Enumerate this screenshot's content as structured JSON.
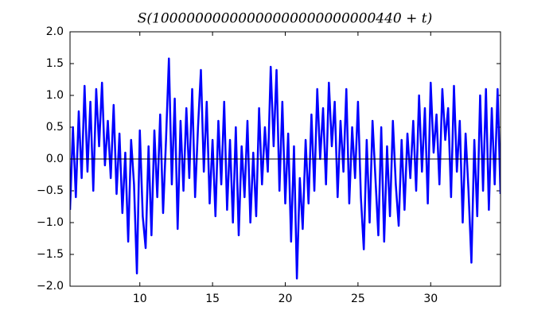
{
  "chart_data": {
    "type": "line",
    "title": "S(10000000000000000000000000440 + t)",
    "color": "#0000ff",
    "hline": 0,
    "xlim": [
      5.2,
      34.8
    ],
    "xticks": [
      10,
      15,
      20,
      25,
      30
    ],
    "ylim": [
      -2,
      2
    ],
    "yticks": [
      {
        "value": -2,
        "label": "−2.0"
      },
      {
        "value": -1.5,
        "label": "−1.5"
      },
      {
        "value": -1,
        "label": "−1.0"
      },
      {
        "value": -0.5,
        "label": "−0.5"
      },
      {
        "value": 0,
        "label": "0.0"
      },
      {
        "value": 0.5,
        "label": "0.5"
      },
      {
        "value": 1,
        "label": "1.0"
      },
      {
        "value": 1.5,
        "label": "1.5"
      },
      {
        "value": 2,
        "label": "2.0"
      }
    ],
    "x": [
      5.2,
      5.4,
      5.6,
      5.8,
      6.0,
      6.2,
      6.4,
      6.6,
      6.8,
      7.0,
      7.2,
      7.4,
      7.6,
      7.8,
      8.0,
      8.2,
      8.4,
      8.6,
      8.8,
      9.0,
      9.2,
      9.4,
      9.6,
      9.8,
      10.0,
      10.2,
      10.4,
      10.6,
      10.8,
      11.0,
      11.2,
      11.4,
      11.6,
      11.8,
      12.0,
      12.2,
      12.4,
      12.6,
      12.8,
      13.0,
      13.2,
      13.4,
      13.6,
      13.8,
      14.0,
      14.2,
      14.4,
      14.6,
      14.8,
      15.0,
      15.2,
      15.4,
      15.6,
      15.8,
      16.0,
      16.2,
      16.4,
      16.6,
      16.8,
      17.0,
      17.2,
      17.4,
      17.6,
      17.8,
      18.0,
      18.2,
      18.4,
      18.6,
      18.8,
      19.0,
      19.2,
      19.4,
      19.6,
      19.8,
      20.0,
      20.2,
      20.4,
      20.6,
      20.8,
      21.0,
      21.2,
      21.4,
      21.6,
      21.8,
      22.0,
      22.2,
      22.4,
      22.6,
      22.8,
      23.0,
      23.2,
      23.4,
      23.6,
      23.8,
      24.0,
      24.2,
      24.4,
      24.6,
      24.8,
      25.0,
      25.2,
      25.4,
      25.6,
      25.8,
      26.0,
      26.2,
      26.4,
      26.6,
      26.8,
      27.0,
      27.2,
      27.4,
      27.6,
      27.8,
      28.0,
      28.2,
      28.4,
      28.6,
      28.8,
      29.0,
      29.2,
      29.4,
      29.6,
      29.8,
      30.0,
      30.2,
      30.4,
      30.6,
      30.8,
      31.0,
      31.2,
      31.4,
      31.6,
      31.8,
      32.0,
      32.2,
      32.4,
      32.6,
      32.8,
      33.0,
      33.2,
      33.4,
      33.6,
      33.8,
      34.0,
      34.2,
      34.4,
      34.6,
      34.8
    ],
    "values": [
      -0.8,
      0.5,
      -0.6,
      0.75,
      -0.3,
      1.15,
      -0.2,
      0.9,
      -0.5,
      1.1,
      0.2,
      1.2,
      -0.1,
      0.6,
      -0.3,
      0.85,
      -0.55,
      0.4,
      -0.85,
      0.1,
      -1.3,
      0.3,
      -0.4,
      -1.8,
      0.45,
      -0.9,
      -1.4,
      0.2,
      -1.2,
      0.45,
      -0.6,
      0.7,
      -0.85,
      0.3,
      1.58,
      -0.4,
      0.95,
      -1.1,
      0.6,
      -0.5,
      0.8,
      -0.3,
      1.1,
      -0.6,
      0.5,
      1.4,
      -0.2,
      0.9,
      -0.7,
      0.3,
      -0.9,
      0.6,
      -0.4,
      0.9,
      -0.8,
      0.3,
      -1.0,
      0.5,
      -1.2,
      0.2,
      -0.6,
      0.6,
      -1.0,
      0.1,
      -0.9,
      0.8,
      -0.4,
      0.5,
      -0.2,
      1.45,
      0.2,
      1.4,
      -0.5,
      0.9,
      -0.7,
      0.4,
      -1.3,
      0.2,
      -1.88,
      -0.3,
      -1.1,
      0.3,
      -0.7,
      0.7,
      -0.5,
      1.1,
      0.0,
      0.8,
      -0.4,
      1.2,
      0.2,
      0.9,
      -0.6,
      0.6,
      -0.2,
      1.1,
      -0.7,
      0.5,
      -0.3,
      0.9,
      -0.6,
      -1.42,
      0.3,
      -1.0,
      0.6,
      -0.3,
      -1.2,
      0.5,
      -1.3,
      0.2,
      -0.9,
      0.6,
      -0.4,
      -1.05,
      0.3,
      -0.8,
      0.4,
      -0.3,
      0.6,
      -0.5,
      1.0,
      -0.2,
      0.8,
      -0.7,
      1.2,
      0.1,
      0.7,
      -0.4,
      1.1,
      0.3,
      0.8,
      -0.6,
      1.15,
      -0.2,
      0.6,
      -1.0,
      0.4,
      -0.5,
      -1.63,
      0.3,
      -0.9,
      1.0,
      -0.5,
      1.1,
      -0.8,
      0.8,
      -0.4,
      1.1,
      -0.55
    ]
  }
}
